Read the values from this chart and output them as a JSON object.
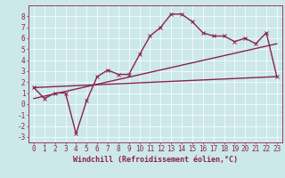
{
  "xlabel": "Windchill (Refroidissement éolien,°C)",
  "background_color": "#cce8e8",
  "grid_color": "#ffffff",
  "line_color": "#882255",
  "xlim": [
    -0.5,
    23.5
  ],
  "ylim": [
    -3.5,
    9.0
  ],
  "xticks": [
    0,
    1,
    2,
    3,
    4,
    5,
    6,
    7,
    8,
    9,
    10,
    11,
    12,
    13,
    14,
    15,
    16,
    17,
    18,
    19,
    20,
    21,
    22,
    23
  ],
  "yticks": [
    -3,
    -2,
    -1,
    0,
    1,
    2,
    3,
    4,
    5,
    6,
    7,
    8
  ],
  "line1_x": [
    0,
    1,
    2,
    3,
    4,
    5,
    6,
    7,
    8,
    9,
    10,
    11,
    12,
    13,
    14,
    15,
    16,
    17,
    18,
    19,
    20,
    21,
    22,
    23
  ],
  "line1_y": [
    1.5,
    0.5,
    1.0,
    1.0,
    -2.7,
    0.3,
    2.5,
    3.1,
    2.7,
    2.7,
    4.5,
    6.2,
    7.0,
    8.2,
    8.2,
    7.5,
    6.5,
    6.2,
    6.2,
    5.7,
    6.0,
    5.5,
    6.5,
    2.5
  ],
  "line2_x": [
    0,
    23
  ],
  "line2_y": [
    0.5,
    5.5
  ],
  "line3_x": [
    0,
    23
  ],
  "line3_y": [
    1.5,
    2.5
  ],
  "marker_size": 2.5,
  "line_width": 1.0,
  "font_size_ticks": 5.5,
  "font_size_label": 6.0
}
